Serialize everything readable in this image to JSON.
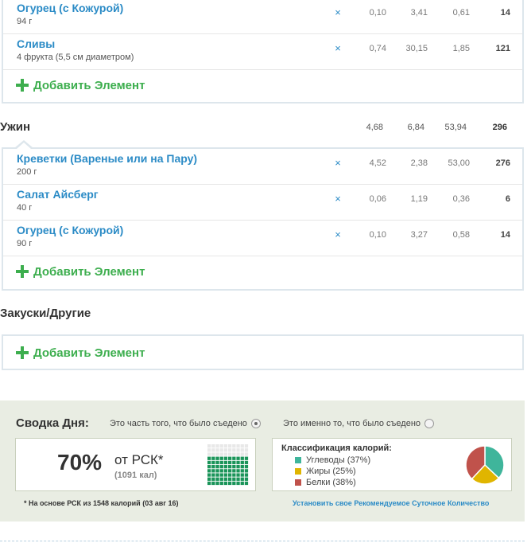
{
  "meals": {
    "dinner_top": {
      "items": [
        {
          "name": "Огурец (с Кожурой)",
          "qty": "94 г",
          "del": "×",
          "v1": "0,10",
          "v2": "3,41",
          "v3": "0,61",
          "v4": "14"
        },
        {
          "name": "Сливы",
          "qty": "4 фрукта (5,5 см диаметром)",
          "del": "×",
          "v1": "0,74",
          "v2": "30,15",
          "v3": "1,85",
          "v4": "121"
        }
      ],
      "add_label": "Добавить Элемент"
    },
    "supper": {
      "title": "Ужин",
      "totals": [
        "4,68",
        "6,84",
        "53,94",
        "296"
      ],
      "items": [
        {
          "name": "Креветки (Вареные или на Пару)",
          "qty": "200 г",
          "del": "×",
          "v1": "4,52",
          "v2": "2,38",
          "v3": "53,00",
          "v4": "276"
        },
        {
          "name": "Салат Айсберг",
          "qty": "40 г",
          "del": "×",
          "v1": "0,06",
          "v2": "1,19",
          "v3": "0,36",
          "v4": "6"
        },
        {
          "name": "Огурец (с Кожурой)",
          "qty": "90 г",
          "del": "×",
          "v1": "0,10",
          "v2": "3,27",
          "v3": "0,58",
          "v4": "14"
        }
      ],
      "add_label": "Добавить Элемент"
    },
    "snacks": {
      "title": "Закуски/Другие",
      "add_label": "Добавить Элемент"
    }
  },
  "summary": {
    "title": "Сводка Дня:",
    "radio_eaten": "Это часть того, что было съедено",
    "radio_exact": "Это именно то, что было съедено",
    "percent": "70%",
    "of_rsk": "от РСК*",
    "kcal": "(1091 кал)",
    "progress_fraction": 0.7,
    "classification_title": "Классификация калорий:",
    "legend": [
      {
        "label": "Углеводы (37%)",
        "color": "#3fb59b",
        "value": 37
      },
      {
        "label": "Жиры (25%)",
        "color": "#e0b500",
        "value": 25
      },
      {
        "label": "Белки (38%)",
        "color": "#c0524b",
        "value": 38
      }
    ],
    "footnote": "* На основе РСК из 1548 калорий (03 авг 16)",
    "set_link": "Установить свое Рекомендуемое Суточное Количество"
  }
}
